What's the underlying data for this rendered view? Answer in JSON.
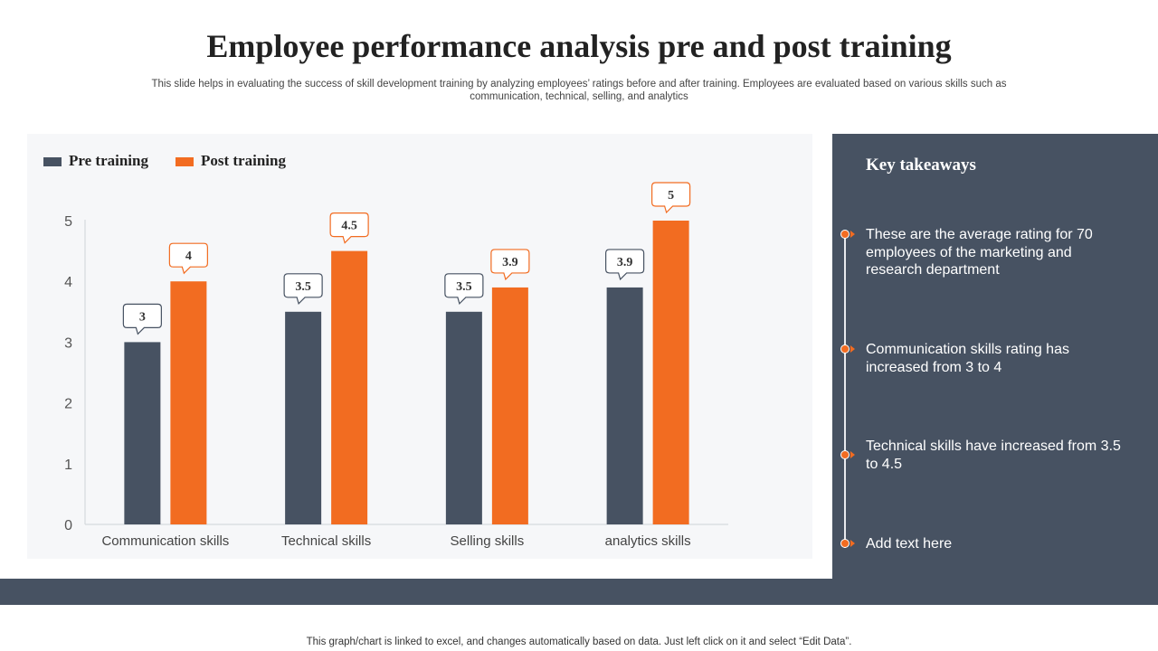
{
  "title": "Employee performance analysis pre and post training",
  "subtitle": "This slide helps in evaluating the success of skill development training by analyzing employees’ ratings before and after training. Employees are evaluated based on various skills such as communication, technical, selling, and analytics",
  "footnote": "This graph/chart is linked to excel, and changes automatically based on data. Just left click on it and select “Edit Data”.",
  "colors": {
    "pre": "#475262",
    "post": "#f26c21",
    "panel": "#475262"
  },
  "takeaways": {
    "title": "Key takeaways",
    "items": [
      "These are the average rating for 70 employees of the marketing and research department",
      "Communication skills rating has increased from 3 to 4",
      "Technical skills have increased from 3.5 to 4.5",
      "Add text here"
    ]
  },
  "chart_data": {
    "type": "bar",
    "categories": [
      "Communication skills",
      "Technical skills",
      "Selling skills",
      "analytics skills"
    ],
    "series": [
      {
        "name": "Pre training",
        "values": [
          3,
          3.5,
          3.5,
          3.9
        ]
      },
      {
        "name": "Post training",
        "values": [
          4,
          4.5,
          3.9,
          5
        ]
      }
    ],
    "yticks": [
      "0",
      "1",
      "2",
      "3",
      "4",
      "5"
    ],
    "ylim": [
      0,
      5
    ],
    "legend": "top-left",
    "grid": false
  }
}
